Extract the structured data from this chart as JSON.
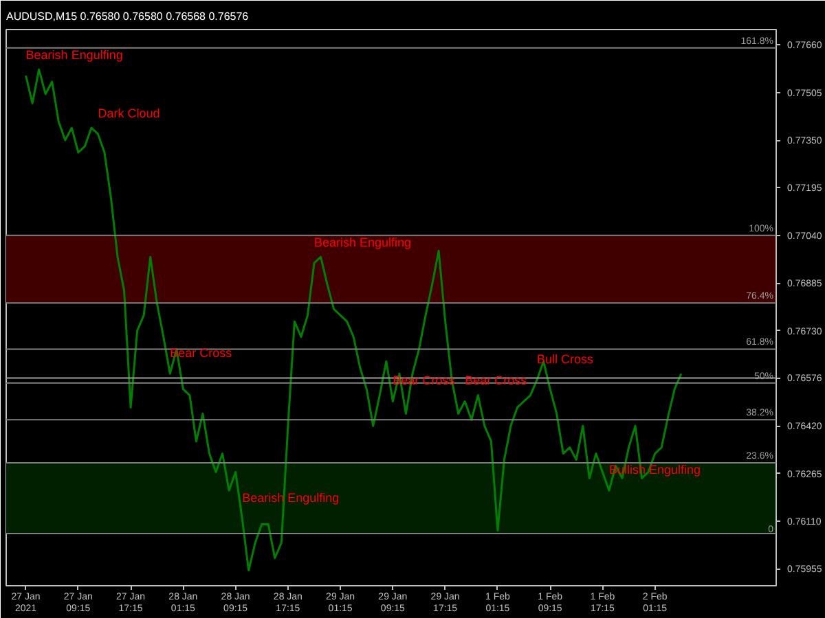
{
  "chart_data": {
    "type": "line",
    "title": "AUDUSD,M15  0.76580 0.76580 0.76568 0.76576",
    "categories": [
      "27 Jan 2021",
      null,
      null,
      null,
      null,
      null,
      null,
      null,
      "27 Jan 09:15",
      null,
      null,
      null,
      null,
      null,
      null,
      null,
      "27 Jan 17:15",
      null,
      null,
      null,
      null,
      null,
      null,
      null,
      "28 Jan 01:15",
      null,
      null,
      null,
      null,
      null,
      null,
      null,
      "28 Jan 09:15",
      null,
      null,
      null,
      null,
      null,
      null,
      null,
      "28 Jan 17:15",
      null,
      null,
      null,
      null,
      null,
      null,
      null,
      "29 Jan 01:15",
      null,
      null,
      null,
      null,
      null,
      null,
      null,
      "29 Jan 09:15",
      null,
      null,
      null,
      null,
      null,
      null,
      null,
      "29 Jan 17:15",
      null,
      null,
      null,
      null,
      null,
      null,
      null,
      "1 Feb 01:15",
      null,
      null,
      null,
      null,
      null,
      null,
      null,
      "1 Feb 09:15",
      null,
      null,
      null,
      null,
      null,
      null,
      null,
      "1 Feb 17:15",
      null,
      null,
      null,
      null,
      null,
      null,
      null,
      "2 Feb 01:15",
      null,
      null,
      null,
      null,
      null,
      null,
      null,
      null,
      null,
      null,
      null,
      null,
      null,
      null,
      null,
      null,
      null,
      null
    ],
    "series": [
      {
        "color": "#008000",
        "values": [
          0.7756,
          0.7747,
          0.7758,
          0.775,
          0.7754,
          0.7741,
          0.7735,
          0.7739,
          0.7731,
          0.7733,
          0.7739,
          0.7737,
          0.7731,
          0.7716,
          0.7697,
          0.7686,
          0.7648,
          0.7673,
          0.7678,
          0.7697,
          0.7682,
          0.7671,
          0.7659,
          0.7667,
          0.7654,
          0.7652,
          0.7637,
          0.7646,
          0.7633,
          0.7627,
          0.7633,
          0.7621,
          0.7627,
          0.7612,
          0.7595,
          0.7604,
          0.761,
          0.761,
          0.7599,
          0.7604,
          0.7642,
          0.7676,
          0.7671,
          0.7678,
          0.7695,
          0.7697,
          0.7688,
          0.768,
          0.7678,
          0.7676,
          0.7671,
          0.7661,
          0.7654,
          0.7642,
          0.7652,
          0.7663,
          0.765,
          0.7659,
          0.7646,
          0.7659,
          0.7667,
          0.7678,
          0.7688,
          0.7699,
          0.7676,
          0.7657,
          0.7646,
          0.765,
          0.7644,
          0.7652,
          0.7642,
          0.7637,
          0.7608,
          0.7631,
          0.7642,
          0.7648,
          0.765,
          0.7652,
          0.7657,
          0.7663,
          0.7654,
          0.7646,
          0.7633,
          0.7635,
          0.7631,
          0.7642,
          0.7625,
          0.7633,
          0.7627,
          0.7621,
          0.7629,
          0.7625,
          0.7635,
          0.7642,
          0.7625,
          0.7627,
          0.7633,
          0.7635,
          0.7645,
          0.7654,
          0.7659,
          null,
          null,
          null,
          null,
          null,
          null,
          null,
          null,
          null,
          null,
          null,
          null,
          null,
          null
        ]
      }
    ],
    "ylim": [
      0.759,
      0.7771
    ],
    "yticks": [
      {
        "value": 0.7766,
        "label": "0.77660"
      },
      {
        "value": 0.77505,
        "label": "0.77505"
      },
      {
        "value": 0.7735,
        "label": "0.77350"
      },
      {
        "value": 0.77195,
        "label": "0.77195"
      },
      {
        "value": 0.7704,
        "label": "0.77040"
      },
      {
        "value": 0.76885,
        "label": "0.76885"
      },
      {
        "value": 0.7673,
        "label": "0.76730"
      },
      {
        "value": 0.76576,
        "label": "0.76576"
      },
      {
        "value": 0.7642,
        "label": "0.76420"
      },
      {
        "value": 0.76265,
        "label": "0.76265"
      },
      {
        "value": 0.7611,
        "label": "0.76110"
      },
      {
        "value": 0.75955,
        "label": "0.75955"
      }
    ],
    "bands": [
      {
        "axis": "y",
        "from": 0.7682,
        "to": 0.7704,
        "color": "#400000"
      },
      {
        "axis": "y",
        "from": 0.7607,
        "to": 0.763,
        "color": "#002000"
      }
    ],
    "ref_lines": [
      {
        "axis": "y",
        "value": 0.7765,
        "color": "#808080"
      },
      {
        "axis": "y",
        "value": 0.7704,
        "color": "#808080"
      },
      {
        "axis": "y",
        "value": 0.7682,
        "color": "#808080"
      },
      {
        "axis": "y",
        "value": 0.7667,
        "color": "#808080"
      },
      {
        "axis": "y",
        "value": 0.7656,
        "color": "#808080"
      },
      {
        "axis": "y",
        "value": 0.7644,
        "color": "#808080"
      },
      {
        "axis": "y",
        "value": 0.763,
        "color": "#808080"
      },
      {
        "axis": "y",
        "value": 0.7607,
        "color": "#808080"
      },
      {
        "axis": "y",
        "value": 0.76576,
        "color": "#a0a0a0"
      }
    ],
    "annotations": [
      "Bearish Engulfing",
      "Dark Cloud",
      "Bear Cross",
      "Bearish Engulfing",
      "Bearish Engulfing",
      "Bear Cross",
      "Bear Cross",
      "Bull Cross",
      "Bullish Engulfing",
      {
        "text": "161.8%",
        "y": 0.7765
      },
      {
        "text": "100%",
        "y": 0.7704
      },
      {
        "text": "76.4%",
        "y": 0.7682
      },
      {
        "text": "61.8%",
        "y": 0.7667
      },
      {
        "text": "50%",
        "y": 0.7656
      },
      {
        "text": "38.2%",
        "y": 0.7644
      },
      {
        "text": "23.6%",
        "y": 0.763
      },
      {
        "text": "0",
        "y": 0.7607
      }
    ]
  }
}
